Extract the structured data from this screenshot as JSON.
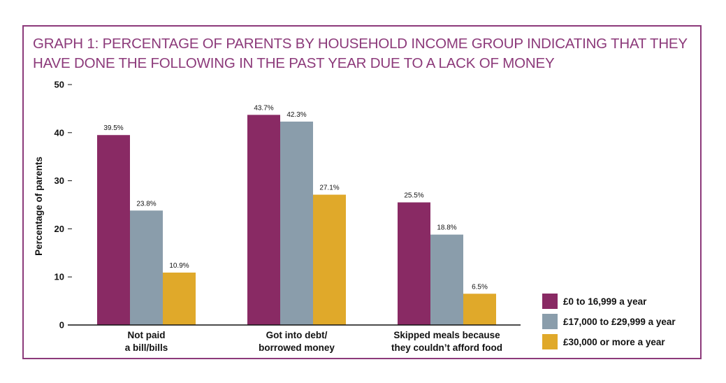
{
  "chart_data": {
    "type": "bar",
    "title": "GRAPH 1: PERCENTAGE OF PARENTS BY HOUSEHOLD INCOME GROUP INDICATING THAT THEY HAVE DONE THE FOLLOWING IN THE PAST YEAR DUE TO A LACK OF MONEY",
    "ylabel": "Percentage of parents",
    "xlabel": "",
    "ylim": [
      0,
      50
    ],
    "yticks": [
      0,
      10,
      20,
      30,
      40,
      50
    ],
    "categories": [
      [
        "Not paid",
        "a bill/bills"
      ],
      [
        "Got into debt/",
        "borrowed money"
      ],
      [
        "Skipped meals because",
        "they couldn’t afford food"
      ]
    ],
    "series": [
      {
        "name": "£0 to 16,999 a year",
        "color": "#892a64",
        "values": [
          39.5,
          43.7,
          25.5
        ],
        "labels": [
          "39.5%",
          "43.7%",
          "25.5%"
        ]
      },
      {
        "name": "£17,000 to £29,999 a year",
        "color": "#8a9dab",
        "values": [
          23.8,
          42.3,
          18.8
        ],
        "labels": [
          "23.8%",
          "42.3%",
          "18.8%"
        ]
      },
      {
        "name": "£30,000 or more a year",
        "color": "#e0a92a",
        "values": [
          10.9,
          27.1,
          6.5
        ],
        "labels": [
          "10.9%",
          "27.1%",
          "6.5%"
        ]
      }
    ],
    "grid": false,
    "legend_position": "bottom-right"
  }
}
